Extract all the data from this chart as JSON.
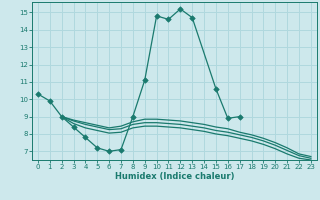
{
  "xlabel": "Humidex (Indice chaleur)",
  "bg_color": "#cde8ec",
  "line_color": "#1a7a6e",
  "grid_color": "#b0d8de",
  "xlim": [
    -0.5,
    23.5
  ],
  "ylim": [
    6.5,
    15.6
  ],
  "yticks": [
    7,
    8,
    9,
    10,
    11,
    12,
    13,
    14,
    15
  ],
  "xticks": [
    0,
    1,
    2,
    3,
    4,
    5,
    6,
    7,
    8,
    9,
    10,
    11,
    12,
    13,
    14,
    15,
    16,
    17,
    18,
    19,
    20,
    21,
    22,
    23
  ],
  "series": [
    {
      "x": [
        0,
        1,
        2,
        3,
        4,
        5,
        6,
        7,
        8,
        9,
        10,
        11,
        12,
        13,
        15,
        16,
        17
      ],
      "y": [
        10.3,
        9.9,
        9.0,
        8.4,
        7.8,
        7.2,
        7.0,
        7.1,
        9.0,
        11.1,
        14.8,
        14.6,
        15.2,
        14.7,
        10.6,
        8.9,
        9.0
      ],
      "marker": true
    },
    {
      "x": [
        2,
        3,
        4,
        5,
        6,
        7,
        8,
        9,
        10,
        11,
        12,
        13,
        14,
        15,
        16,
        17,
        18,
        19,
        20,
        21,
        22,
        23
      ],
      "y": [
        9.0,
        8.8,
        8.65,
        8.5,
        8.35,
        8.45,
        8.7,
        8.85,
        8.85,
        8.8,
        8.75,
        8.65,
        8.55,
        8.4,
        8.3,
        8.1,
        7.95,
        7.75,
        7.5,
        7.2,
        6.85,
        6.7
      ],
      "marker": false
    },
    {
      "x": [
        2,
        3,
        4,
        5,
        6,
        7,
        8,
        9,
        10,
        11,
        12,
        13,
        14,
        15,
        16,
        17,
        18,
        19,
        20,
        21,
        22,
        23
      ],
      "y": [
        9.0,
        8.75,
        8.55,
        8.4,
        8.25,
        8.3,
        8.55,
        8.65,
        8.65,
        8.6,
        8.55,
        8.45,
        8.35,
        8.2,
        8.1,
        7.95,
        7.8,
        7.6,
        7.35,
        7.05,
        6.75,
        6.6
      ],
      "marker": false
    },
    {
      "x": [
        2,
        3,
        4,
        5,
        6,
        7,
        8,
        9,
        10,
        11,
        12,
        13,
        14,
        15,
        16,
        17,
        18,
        19,
        20,
        21,
        22,
        23
      ],
      "y": [
        9.0,
        8.6,
        8.35,
        8.2,
        8.05,
        8.1,
        8.35,
        8.45,
        8.45,
        8.4,
        8.35,
        8.25,
        8.15,
        8.0,
        7.9,
        7.75,
        7.6,
        7.4,
        7.15,
        6.85,
        6.6,
        6.5
      ],
      "marker": false
    }
  ],
  "marker_style": "D",
  "markersize": 2.8,
  "linewidth": 0.9,
  "tick_fontsize": 5.0,
  "xlabel_fontsize": 6.0
}
